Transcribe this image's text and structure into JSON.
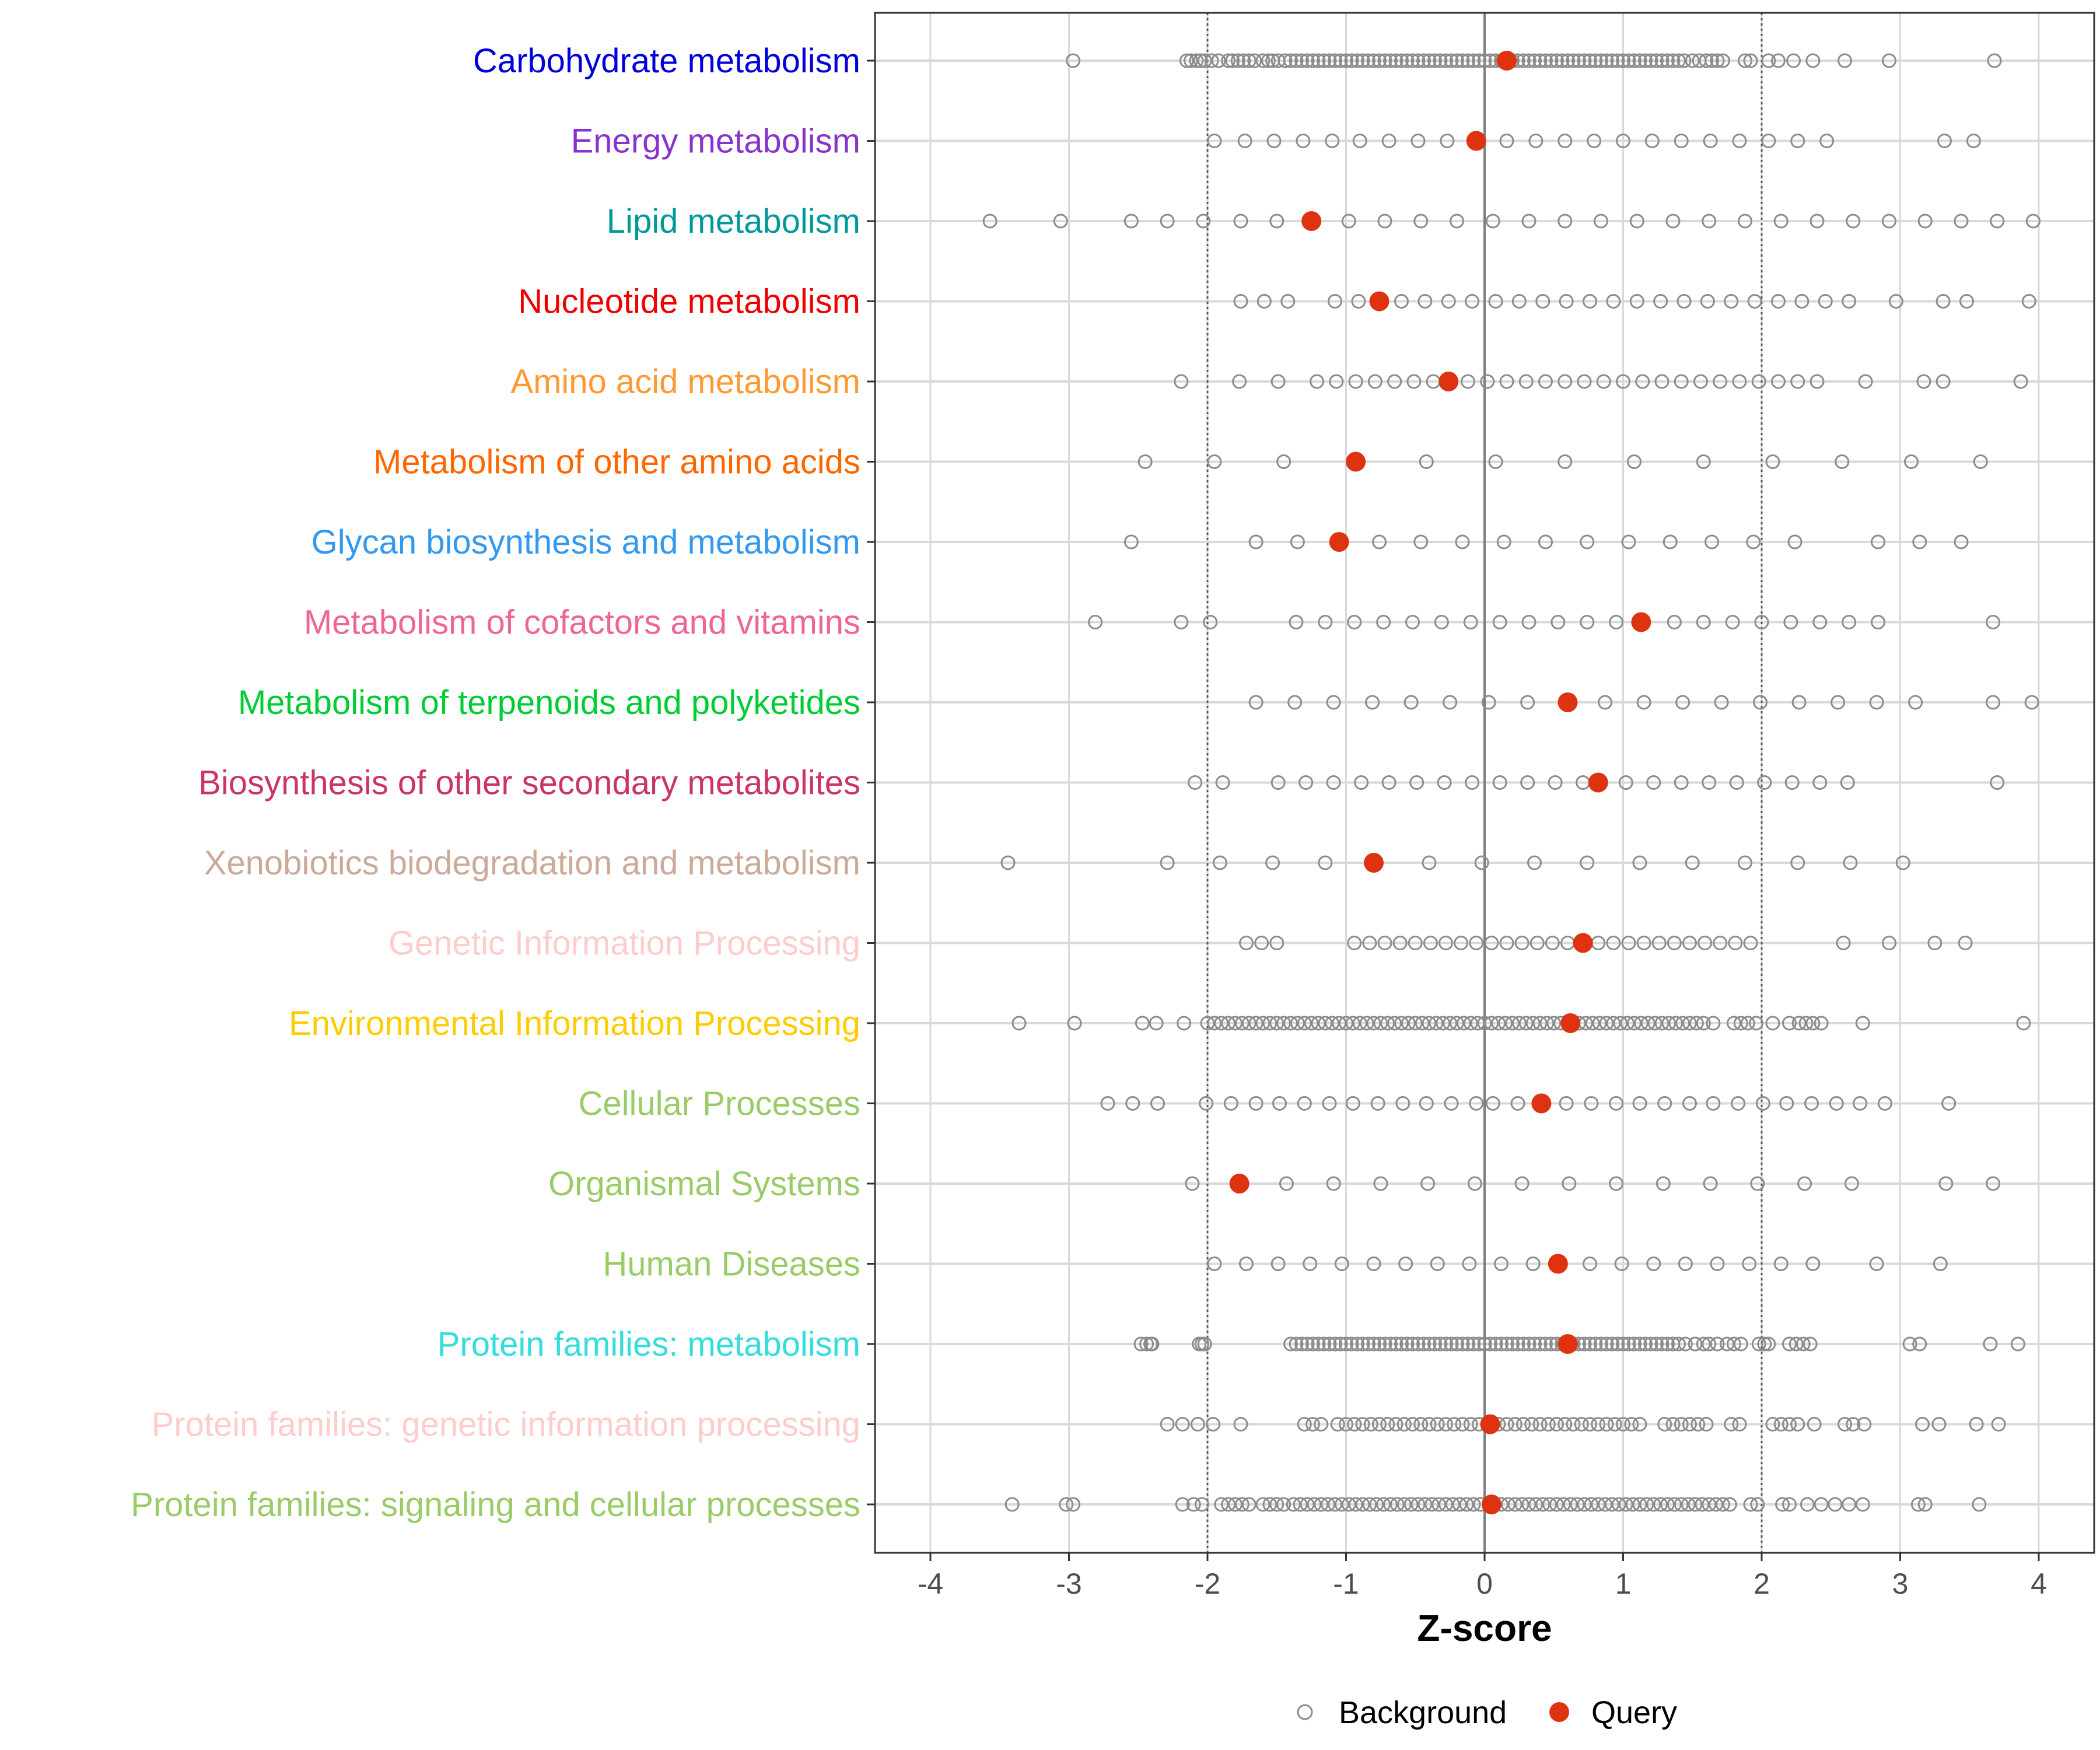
{
  "chart_data": {
    "type": "scatter",
    "orientation": "horizontal-categories",
    "xlabel": "Z-score",
    "xlim": [
      -4.4,
      4.4
    ],
    "xticks": [
      -4,
      -3,
      -2,
      -1,
      0,
      1,
      2,
      3,
      4
    ],
    "xtick_labels": [
      "-4",
      "-3",
      "-2",
      "-1",
      "0",
      "1",
      "2",
      "3",
      "4"
    ],
    "reference_lines": [
      -2,
      0,
      2
    ],
    "legend": {
      "position": "bottom",
      "entries": [
        {
          "name": "Background",
          "style": "open-circle",
          "color": "#8c8c8c"
        },
        {
          "name": "Query",
          "style": "filled-circle",
          "color": "#dd3311"
        }
      ]
    },
    "categories": [
      {
        "name": "Carbohydrate metabolism",
        "color": "#0000dd",
        "query": 0.16,
        "background": [
          -2.97,
          -2.15,
          -2.12,
          -2.08,
          -2.05,
          -2.02,
          -1.97,
          -1.92,
          -1.85,
          -1.82,
          -1.78,
          -1.74,
          -1.7,
          -1.66,
          -1.6,
          -1.56,
          -1.53,
          -1.49,
          -1.44,
          -1.4,
          -1.36,
          -1.32,
          -1.28,
          -1.24,
          -1.2,
          -1.16,
          -1.12,
          -1.08,
          -1.04,
          -1.0,
          -0.96,
          -0.92,
          -0.88,
          -0.84,
          -0.8,
          -0.76,
          -0.72,
          -0.68,
          -0.64,
          -0.6,
          -0.56,
          -0.52,
          -0.48,
          -0.44,
          -0.4,
          -0.36,
          -0.32,
          -0.28,
          -0.24,
          -0.2,
          -0.16,
          -0.12,
          -0.08,
          -0.04,
          0.0,
          0.04,
          0.08,
          0.12,
          0.2,
          0.24,
          0.28,
          0.32,
          0.36,
          0.4,
          0.44,
          0.48,
          0.52,
          0.56,
          0.6,
          0.64,
          0.68,
          0.72,
          0.76,
          0.8,
          0.84,
          0.88,
          0.92,
          0.96,
          1.0,
          1.04,
          1.08,
          1.12,
          1.16,
          1.2,
          1.24,
          1.28,
          1.32,
          1.36,
          1.4,
          1.44,
          1.5,
          1.55,
          1.6,
          1.64,
          1.68,
          1.72,
          1.88,
          1.92,
          2.05,
          2.12,
          2.23,
          2.37,
          2.6,
          2.92,
          3.68
        ]
      },
      {
        "name": "Energy metabolism",
        "color": "#8833cc",
        "query": -0.06,
        "background": [
          -1.95,
          -1.73,
          -1.52,
          -1.31,
          -1.1,
          -0.9,
          -0.69,
          -0.48,
          -0.27,
          0.16,
          0.37,
          0.58,
          0.79,
          1.0,
          1.21,
          1.42,
          1.63,
          1.84,
          2.05,
          2.26,
          2.47,
          3.32,
          3.53
        ]
      },
      {
        "name": "Lipid metabolism",
        "color": "#009999",
        "query": -1.25,
        "background": [
          -3.57,
          -3.06,
          -2.55,
          -2.29,
          -2.03,
          -1.76,
          -1.5,
          -0.98,
          -0.72,
          -0.46,
          -0.2,
          0.06,
          0.32,
          0.58,
          0.84,
          1.1,
          1.36,
          1.62,
          1.88,
          2.14,
          2.4,
          2.66,
          2.92,
          3.18,
          3.44,
          3.7,
          3.96
        ]
      },
      {
        "name": "Nucleotide metabolism",
        "color": "#ee0000",
        "query": -0.76,
        "background": [
          -1.76,
          -1.59,
          -1.42,
          -1.08,
          -0.91,
          -0.6,
          -0.43,
          -0.26,
          -0.09,
          0.08,
          0.25,
          0.42,
          0.59,
          0.76,
          0.93,
          1.1,
          1.27,
          1.44,
          1.61,
          1.78,
          1.95,
          2.12,
          2.29,
          2.46,
          2.63,
          2.97,
          3.31,
          3.48,
          3.93
        ]
      },
      {
        "name": "Amino acid metabolism",
        "color": "#ff9933",
        "query": -0.26,
        "background": [
          -2.19,
          -1.77,
          -1.49,
          -1.21,
          -1.07,
          -0.93,
          -0.79,
          -0.65,
          -0.51,
          -0.37,
          -0.12,
          0.02,
          0.16,
          0.3,
          0.44,
          0.58,
          0.72,
          0.86,
          1.0,
          1.14,
          1.28,
          1.42,
          1.56,
          1.7,
          1.84,
          1.98,
          2.12,
          2.26,
          2.4,
          2.75,
          3.17,
          3.31,
          3.87
        ]
      },
      {
        "name": "Metabolism of other amino acids",
        "color": "#ff6600",
        "query": -0.93,
        "background": [
          -2.45,
          -1.95,
          -1.45,
          -0.42,
          0.08,
          0.58,
          1.08,
          1.58,
          2.08,
          2.58,
          3.08,
          3.58
        ]
      },
      {
        "name": "Glycan biosynthesis and metabolism",
        "color": "#3399ee",
        "query": -1.05,
        "background": [
          -2.55,
          -1.65,
          -1.35,
          -0.76,
          -0.46,
          -0.16,
          0.14,
          0.44,
          0.74,
          1.04,
          1.34,
          1.64,
          1.94,
          2.24,
          2.84,
          3.14,
          3.44
        ]
      },
      {
        "name": "Metabolism of cofactors and vitamins",
        "color": "#ee6699",
        "query": 1.13,
        "background": [
          -2.81,
          -2.19,
          -1.98,
          -1.36,
          -1.15,
          -0.94,
          -0.73,
          -0.52,
          -0.31,
          -0.1,
          0.11,
          0.32,
          0.53,
          0.74,
          0.95,
          1.37,
          1.58,
          1.79,
          2.0,
          2.21,
          2.42,
          2.63,
          2.84,
          3.67
        ]
      },
      {
        "name": "Metabolism of terpenoids and polyketides",
        "color": "#00cc33",
        "query": 0.6,
        "background": [
          -1.65,
          -1.37,
          -1.09,
          -0.81,
          -0.53,
          -0.25,
          0.03,
          0.31,
          0.87,
          1.15,
          1.43,
          1.71,
          1.99,
          2.27,
          2.55,
          2.83,
          3.11,
          3.67,
          3.95
        ]
      },
      {
        "name": "Biosynthesis of other secondary metabolites",
        "color": "#cc3366",
        "query": 0.82,
        "background": [
          -2.09,
          -1.89,
          -1.49,
          -1.29,
          -1.09,
          -0.89,
          -0.69,
          -0.49,
          -0.29,
          -0.09,
          0.11,
          0.31,
          0.51,
          0.71,
          1.02,
          1.22,
          1.42,
          1.62,
          1.82,
          2.02,
          2.22,
          2.42,
          2.62,
          3.7
        ]
      },
      {
        "name": "Xenobiotics biodegradation and metabolism",
        "color": "#ccaa99",
        "query": -0.8,
        "background": [
          -3.44,
          -2.29,
          -1.91,
          -1.53,
          -1.15,
          -0.4,
          -0.02,
          0.36,
          0.74,
          1.12,
          1.5,
          1.88,
          2.26,
          2.64,
          3.02
        ]
      },
      {
        "name": "Genetic Information Processing",
        "color": "#ffcccc",
        "query": 0.71,
        "background": [
          -1.72,
          -1.61,
          -1.5,
          -0.94,
          -0.83,
          -0.72,
          -0.61,
          -0.5,
          -0.39,
          -0.28,
          -0.17,
          -0.06,
          0.05,
          0.16,
          0.27,
          0.38,
          0.49,
          0.6,
          0.82,
          0.93,
          1.04,
          1.15,
          1.26,
          1.37,
          1.48,
          1.59,
          1.7,
          1.81,
          1.92,
          2.59,
          2.92,
          3.25,
          3.47
        ]
      },
      {
        "name": "Environmental Information Processing",
        "color": "#ffcc00",
        "query": 0.62,
        "background": [
          -3.36,
          -2.96,
          -2.47,
          -2.37,
          -2.17,
          -2.0,
          -1.95,
          -1.9,
          -1.85,
          -1.8,
          -1.75,
          -1.7,
          -1.65,
          -1.6,
          -1.55,
          -1.5,
          -1.45,
          -1.4,
          -1.35,
          -1.3,
          -1.25,
          -1.2,
          -1.15,
          -1.1,
          -1.05,
          -1.0,
          -0.95,
          -0.9,
          -0.85,
          -0.8,
          -0.75,
          -0.7,
          -0.65,
          -0.6,
          -0.55,
          -0.5,
          -0.45,
          -0.4,
          -0.35,
          -0.3,
          -0.25,
          -0.2,
          -0.15,
          -0.1,
          -0.05,
          0.0,
          0.05,
          0.1,
          0.15,
          0.2,
          0.25,
          0.3,
          0.35,
          0.4,
          0.45,
          0.5,
          0.55,
          0.68,
          0.73,
          0.78,
          0.83,
          0.88,
          0.93,
          0.98,
          1.03,
          1.08,
          1.13,
          1.18,
          1.23,
          1.28,
          1.33,
          1.38,
          1.43,
          1.48,
          1.53,
          1.58,
          1.65,
          1.8,
          1.85,
          1.9,
          1.96,
          2.08,
          2.2,
          2.27,
          2.32,
          2.37,
          2.43,
          2.73,
          3.89
        ]
      },
      {
        "name": "Cellular Processes",
        "color": "#99cc66",
        "query": 0.41,
        "background": [
          -2.72,
          -2.54,
          -2.36,
          -2.01,
          -1.83,
          -1.65,
          -1.48,
          -1.3,
          -1.12,
          -0.95,
          -0.77,
          -0.59,
          -0.42,
          -0.24,
          -0.06,
          0.06,
          0.24,
          0.59,
          0.77,
          0.95,
          1.12,
          1.3,
          1.48,
          1.65,
          1.83,
          2.01,
          2.18,
          2.36,
          2.54,
          2.71,
          2.89,
          3.35
        ]
      },
      {
        "name": "Organismal Systems",
        "color": "#99cc66",
        "query": -1.77,
        "background": [
          -2.11,
          -1.43,
          -1.09,
          -0.75,
          -0.41,
          -0.07,
          0.27,
          0.61,
          0.95,
          1.29,
          1.63,
          1.97,
          2.31,
          2.65,
          3.33,
          3.67
        ]
      },
      {
        "name": "Human Diseases",
        "color": "#99cc66",
        "query": 0.53,
        "background": [
          -1.95,
          -1.72,
          -1.49,
          -1.26,
          -1.03,
          -0.8,
          -0.57,
          -0.34,
          -0.11,
          0.12,
          0.35,
          0.76,
          0.99,
          1.22,
          1.45,
          1.68,
          1.91,
          2.14,
          2.37,
          2.83,
          3.29
        ]
      },
      {
        "name": "Protein families: metabolism",
        "color": "#33dddd",
        "query": 0.6,
        "background": [
          -2.48,
          -2.44,
          -2.41,
          -2.4,
          -2.06,
          -2.04,
          -2.02,
          -1.4,
          -1.36,
          -1.32,
          -1.28,
          -1.24,
          -1.2,
          -1.16,
          -1.12,
          -1.08,
          -1.04,
          -1.0,
          -0.96,
          -0.92,
          -0.88,
          -0.84,
          -0.8,
          -0.76,
          -0.72,
          -0.68,
          -0.64,
          -0.6,
          -0.56,
          -0.52,
          -0.48,
          -0.44,
          -0.4,
          -0.36,
          -0.32,
          -0.28,
          -0.24,
          -0.2,
          -0.16,
          -0.12,
          -0.08,
          -0.04,
          0.0,
          0.04,
          0.08,
          0.12,
          0.16,
          0.2,
          0.24,
          0.28,
          0.32,
          0.36,
          0.4,
          0.44,
          0.48,
          0.52,
          0.56,
          0.64,
          0.68,
          0.72,
          0.76,
          0.8,
          0.84,
          0.88,
          0.92,
          0.96,
          1.0,
          1.04,
          1.08,
          1.12,
          1.16,
          1.2,
          1.24,
          1.28,
          1.32,
          1.36,
          1.4,
          1.45,
          1.52,
          1.58,
          1.62,
          1.68,
          1.75,
          1.8,
          1.85,
          1.98,
          2.02,
          2.05,
          2.2,
          2.25,
          2.3,
          2.35,
          3.07,
          3.14,
          3.65,
          3.85
        ]
      },
      {
        "name": "Protein families: genetic information processing",
        "color": "#ffcccc",
        "query": 0.04,
        "background": [
          -2.29,
          -2.18,
          -2.07,
          -1.96,
          -1.76,
          -1.3,
          -1.24,
          -1.18,
          -1.06,
          -1.0,
          -0.94,
          -0.88,
          -0.82,
          -0.76,
          -0.7,
          -0.64,
          -0.58,
          -0.52,
          -0.46,
          -0.4,
          -0.34,
          -0.28,
          -0.22,
          -0.16,
          -0.1,
          -0.04,
          0.1,
          0.16,
          0.22,
          0.28,
          0.34,
          0.4,
          0.46,
          0.52,
          0.58,
          0.64,
          0.7,
          0.76,
          0.82,
          0.88,
          0.94,
          1.0,
          1.06,
          1.12,
          1.3,
          1.36,
          1.42,
          1.48,
          1.54,
          1.6,
          1.78,
          1.84,
          2.08,
          2.14,
          2.2,
          2.26,
          2.38,
          2.6,
          2.66,
          2.74,
          3.16,
          3.28,
          3.55,
          3.71
        ]
      },
      {
        "name": "Protein families: signaling and cellular processes",
        "color": "#99cc66",
        "query": 0.05,
        "background": [
          -3.41,
          -3.02,
          -2.97,
          -2.18,
          -2.1,
          -2.04,
          -1.9,
          -1.85,
          -1.8,
          -1.75,
          -1.7,
          -1.6,
          -1.55,
          -1.5,
          -1.45,
          -1.38,
          -1.33,
          -1.28,
          -1.23,
          -1.18,
          -1.13,
          -1.08,
          -1.03,
          -0.98,
          -0.93,
          -0.88,
          -0.83,
          -0.78,
          -0.73,
          -0.68,
          -0.63,
          -0.58,
          -0.53,
          -0.48,
          -0.43,
          -0.38,
          -0.33,
          -0.28,
          -0.23,
          -0.18,
          -0.13,
          -0.08,
          -0.03,
          0.12,
          0.17,
          0.22,
          0.27,
          0.32,
          0.37,
          0.42,
          0.47,
          0.52,
          0.57,
          0.62,
          0.67,
          0.72,
          0.77,
          0.82,
          0.87,
          0.92,
          0.97,
          1.02,
          1.07,
          1.12,
          1.17,
          1.22,
          1.27,
          1.32,
          1.37,
          1.42,
          1.47,
          1.52,
          1.57,
          1.62,
          1.67,
          1.72,
          1.77,
          1.92,
          1.97,
          2.15,
          2.2,
          2.33,
          2.43,
          2.53,
          2.63,
          2.73,
          3.13,
          3.18,
          3.57
        ]
      }
    ]
  }
}
